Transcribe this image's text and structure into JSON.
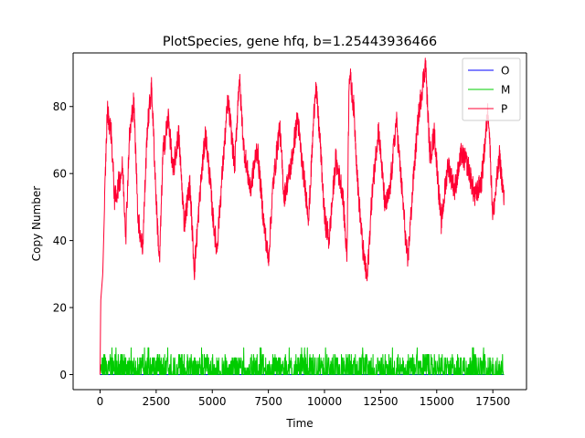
{
  "chart_data": {
    "type": "line",
    "title": "PlotSpecies, gene hfq, b=1.25443936466",
    "xlabel": "Time",
    "ylabel": "Copy Number",
    "xlim": [
      -1200,
      19000
    ],
    "ylim": [
      -4.5,
      96
    ],
    "xticks": [
      0,
      2500,
      5000,
      7500,
      10000,
      12500,
      15000,
      17500
    ],
    "xtick_labels": [
      "0",
      "2500",
      "5000",
      "7500",
      "10000",
      "12500",
      "15000",
      "17500"
    ],
    "yticks": [
      0,
      20,
      40,
      60,
      80
    ],
    "ytick_labels": [
      "0",
      "20",
      "40",
      "60",
      "80"
    ],
    "grid": false,
    "legend_position": "top-right",
    "x_range": [
      0,
      18000
    ],
    "series": [
      {
        "name": "O",
        "color": "#0000ff",
        "approximate": true,
        "points": [
          [
            0,
            0
          ],
          [
            18000,
            0
          ]
        ]
      },
      {
        "name": "M",
        "color": "#00cc00",
        "approximate": true,
        "noisy_band": {
          "baseline": 0,
          "typical_max": 6,
          "max": 8
        },
        "points": [
          [
            0,
            0
          ],
          [
            150,
            8
          ],
          [
            300,
            2
          ],
          [
            2300,
            8
          ],
          [
            4500,
            7
          ],
          [
            8500,
            6
          ],
          [
            14500,
            8
          ],
          [
            17500,
            7
          ],
          [
            18000,
            3
          ]
        ]
      },
      {
        "name": "P",
        "color": "#ff0033",
        "approximate": true,
        "points": [
          [
            0,
            0
          ],
          [
            30,
            22
          ],
          [
            120,
            30
          ],
          [
            250,
            63
          ],
          [
            320,
            79
          ],
          [
            500,
            72
          ],
          [
            650,
            52
          ],
          [
            800,
            56
          ],
          [
            1000,
            62
          ],
          [
            1150,
            42
          ],
          [
            1300,
            70
          ],
          [
            1500,
            82
          ],
          [
            1700,
            46
          ],
          [
            1900,
            38
          ],
          [
            2100,
            73
          ],
          [
            2300,
            86
          ],
          [
            2500,
            52
          ],
          [
            2650,
            33
          ],
          [
            2800,
            66
          ],
          [
            3050,
            77
          ],
          [
            3250,
            60
          ],
          [
            3500,
            72
          ],
          [
            3750,
            45
          ],
          [
            4000,
            57
          ],
          [
            4200,
            31
          ],
          [
            4300,
            40
          ],
          [
            4500,
            58
          ],
          [
            4700,
            72
          ],
          [
            4900,
            58
          ],
          [
            5000,
            49
          ],
          [
            5200,
            37
          ],
          [
            5500,
            65
          ],
          [
            5700,
            82
          ],
          [
            5850,
            72
          ],
          [
            6000,
            62
          ],
          [
            6200,
            89
          ],
          [
            6400,
            68
          ],
          [
            6700,
            55
          ],
          [
            7000,
            68
          ],
          [
            7300,
            45
          ],
          [
            7500,
            34
          ],
          [
            7700,
            56
          ],
          [
            8000,
            74
          ],
          [
            8200,
            53
          ],
          [
            8500,
            62
          ],
          [
            8800,
            77
          ],
          [
            9000,
            63
          ],
          [
            9300,
            47
          ],
          [
            9600,
            87
          ],
          [
            9800,
            70
          ],
          [
            10000,
            47
          ],
          [
            10200,
            40
          ],
          [
            10500,
            64
          ],
          [
            10800,
            55
          ],
          [
            11000,
            35
          ],
          [
            11100,
            91
          ],
          [
            11300,
            80
          ],
          [
            11500,
            55
          ],
          [
            11700,
            38
          ],
          [
            11900,
            28
          ],
          [
            12100,
            52
          ],
          [
            12400,
            74
          ],
          [
            12700,
            50
          ],
          [
            12900,
            54
          ],
          [
            13200,
            76
          ],
          [
            13500,
            51
          ],
          [
            13700,
            33
          ],
          [
            14000,
            62
          ],
          [
            14200,
            78
          ],
          [
            14500,
            93
          ],
          [
            14700,
            65
          ],
          [
            14900,
            72
          ],
          [
            15200,
            45
          ],
          [
            15500,
            63
          ],
          [
            15800,
            55
          ],
          [
            16100,
            66
          ],
          [
            16400,
            62
          ],
          [
            16700,
            53
          ],
          [
            17000,
            58
          ],
          [
            17300,
            80
          ],
          [
            17500,
            47
          ],
          [
            17800,
            65
          ],
          [
            18000,
            52
          ]
        ]
      }
    ]
  }
}
